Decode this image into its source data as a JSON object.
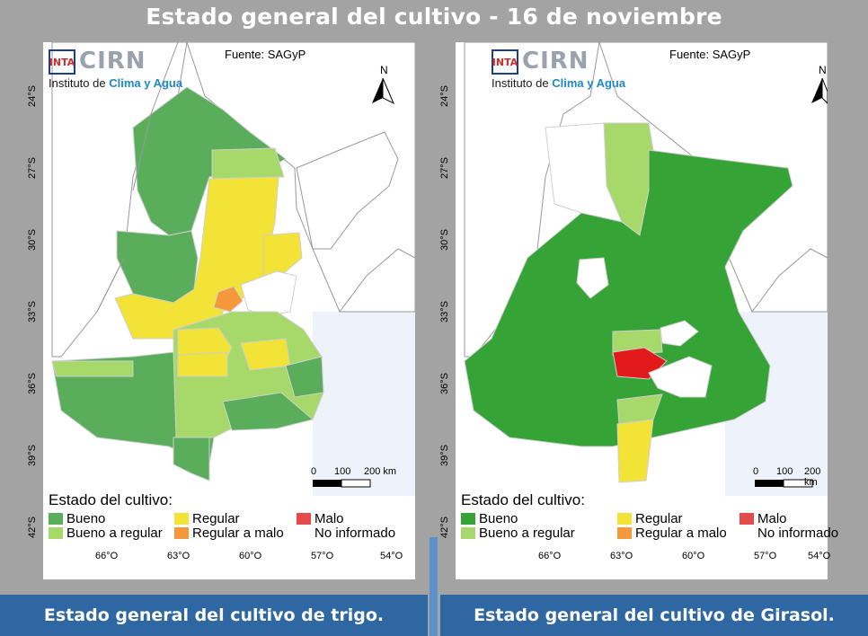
{
  "page_title": "Estado general del cultivo - 16 de noviembre",
  "captions": {
    "left": "Estado general del cultivo de trigo.",
    "right": "Estado general del cultivo de Girasol."
  },
  "map_common": {
    "source": "Fuente: SAGyP",
    "logo": {
      "inta": "INTA",
      "cirn": "CIRN",
      "sub_plain": "Instituto de ",
      "sub_colored": "Clima y Agua"
    },
    "north": "N",
    "scale": {
      "zero": "0",
      "mid": "100",
      "end": "200 km"
    },
    "lat_labels": [
      "24°S",
      "27°S",
      "30°S",
      "33°S",
      "36°S",
      "39°S",
      "42°S"
    ],
    "lon_labels": [
      "66°O",
      "63°O",
      "60°O",
      "57°O",
      "54°O"
    ],
    "legend_title": "Estado del cultivo:",
    "legend": [
      {
        "label": "Bueno",
        "color": "#5aad5a"
      },
      {
        "label": "Bueno a regular",
        "color": "#a6d96a"
      },
      {
        "label": "Regular",
        "color": "#f2e336"
      },
      {
        "label": "Regular a malo",
        "color": "#f5983b"
      },
      {
        "label": "Malo",
        "color": "#e34a4a"
      },
      {
        "label": "No informado",
        "color": "#ffffff"
      }
    ]
  },
  "colors": {
    "bueno": "#5aad5a",
    "bueno_girasol": "#36a336",
    "bueno_regular": "#a6d96a",
    "regular": "#f2e336",
    "regular_malo": "#f5983b",
    "malo": "#e31a1c",
    "sea": "#eef3fb",
    "border": "#888888"
  }
}
